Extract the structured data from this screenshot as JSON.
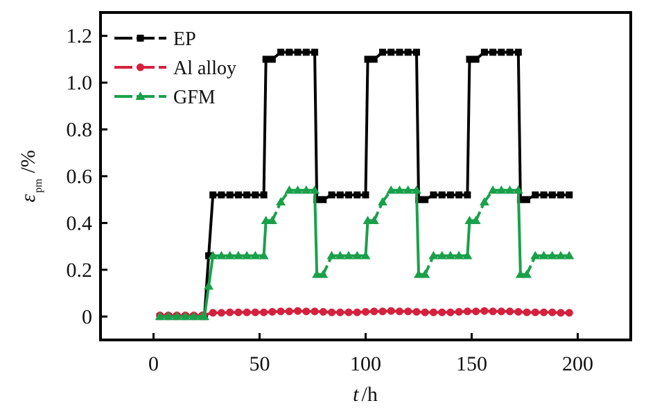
{
  "chart_data": {
    "type": "line",
    "title": "",
    "xlabel": {
      "var": "t",
      "unit": "/h"
    },
    "ylabel": {
      "symbol": "ε",
      "subscript": "pm",
      "unit": "/%"
    },
    "xlim": [
      -25,
      225
    ],
    "ylim": [
      -0.1,
      1.3
    ],
    "xticks": [
      0,
      50,
      100,
      150,
      200
    ],
    "yticks": [
      0,
      0.2,
      0.4,
      0.6,
      0.8,
      1.0,
      1.2
    ],
    "ytick_labels": [
      "0",
      "0.2",
      "0.4",
      "0.6",
      "0.8",
      "1.0",
      "1.2"
    ],
    "grid": false,
    "legend_position": "top-left",
    "series": [
      {
        "name": "EP",
        "color": "#000000",
        "marker": "square",
        "x": [
          3,
          7,
          11,
          15,
          19,
          23,
          24,
          26,
          28,
          32,
          36,
          40,
          44,
          48,
          52,
          53,
          56,
          60,
          64,
          68,
          72,
          76,
          77,
          80,
          84,
          88,
          92,
          96,
          100,
          101,
          104,
          108,
          112,
          116,
          120,
          124,
          125,
          128,
          132,
          136,
          140,
          144,
          148,
          149,
          152,
          156,
          160,
          164,
          168,
          172,
          173,
          176,
          180,
          184,
          188,
          192,
          196
        ],
        "y": [
          0.0,
          0.0,
          0.0,
          0.0,
          0.0,
          0.0,
          0.0,
          0.26,
          0.52,
          0.52,
          0.52,
          0.52,
          0.52,
          0.52,
          0.52,
          1.1,
          1.1,
          1.13,
          1.13,
          1.13,
          1.13,
          1.13,
          0.5,
          0.5,
          0.52,
          0.52,
          0.52,
          0.52,
          0.52,
          1.1,
          1.1,
          1.13,
          1.13,
          1.13,
          1.13,
          1.13,
          0.5,
          0.5,
          0.52,
          0.52,
          0.52,
          0.52,
          0.52,
          1.1,
          1.1,
          1.13,
          1.13,
          1.13,
          1.13,
          1.13,
          0.5,
          0.5,
          0.52,
          0.52,
          0.52,
          0.52,
          0.52
        ]
      },
      {
        "name": "Al alloy",
        "color": "#d4213d",
        "marker": "circle",
        "x": [
          3,
          7,
          11,
          15,
          19,
          23,
          28,
          32,
          36,
          40,
          44,
          48,
          52,
          56,
          60,
          64,
          68,
          72,
          76,
          80,
          84,
          88,
          92,
          96,
          100,
          104,
          108,
          112,
          116,
          120,
          124,
          128,
          132,
          136,
          140,
          144,
          148,
          152,
          156,
          160,
          164,
          168,
          172,
          176,
          180,
          184,
          188,
          192,
          196
        ],
        "y": [
          0.005,
          0.005,
          0.005,
          0.005,
          0.005,
          0.005,
          0.016,
          0.016,
          0.018,
          0.018,
          0.018,
          0.018,
          0.018,
          0.02,
          0.022,
          0.022,
          0.024,
          0.022,
          0.022,
          0.02,
          0.018,
          0.018,
          0.018,
          0.018,
          0.02,
          0.022,
          0.022,
          0.024,
          0.022,
          0.022,
          0.02,
          0.018,
          0.018,
          0.018,
          0.018,
          0.02,
          0.022,
          0.022,
          0.024,
          0.022,
          0.022,
          0.022,
          0.02,
          0.018,
          0.018,
          0.018,
          0.018,
          0.016,
          0.016
        ]
      },
      {
        "name": "GFM",
        "color": "#1aa04a",
        "marker": "triangle",
        "x": [
          3,
          7,
          11,
          15,
          19,
          23,
          24,
          26,
          28,
          32,
          36,
          40,
          44,
          48,
          52,
          53,
          56,
          60,
          64,
          68,
          72,
          76,
          77,
          80,
          84,
          88,
          92,
          96,
          100,
          101,
          104,
          108,
          112,
          116,
          120,
          124,
          125,
          128,
          132,
          136,
          140,
          144,
          148,
          149,
          152,
          156,
          160,
          164,
          168,
          172,
          173,
          176,
          180,
          184,
          188,
          192,
          196
        ],
        "y": [
          0.0,
          0.0,
          0.0,
          0.0,
          0.0,
          0.0,
          0.0,
          0.13,
          0.26,
          0.26,
          0.26,
          0.26,
          0.26,
          0.26,
          0.26,
          0.41,
          0.41,
          0.49,
          0.54,
          0.54,
          0.54,
          0.54,
          0.18,
          0.18,
          0.26,
          0.26,
          0.26,
          0.26,
          0.26,
          0.41,
          0.41,
          0.49,
          0.54,
          0.54,
          0.54,
          0.54,
          0.18,
          0.18,
          0.26,
          0.26,
          0.26,
          0.26,
          0.26,
          0.41,
          0.41,
          0.49,
          0.54,
          0.54,
          0.54,
          0.54,
          0.18,
          0.18,
          0.26,
          0.26,
          0.26,
          0.26,
          0.26
        ]
      }
    ]
  }
}
